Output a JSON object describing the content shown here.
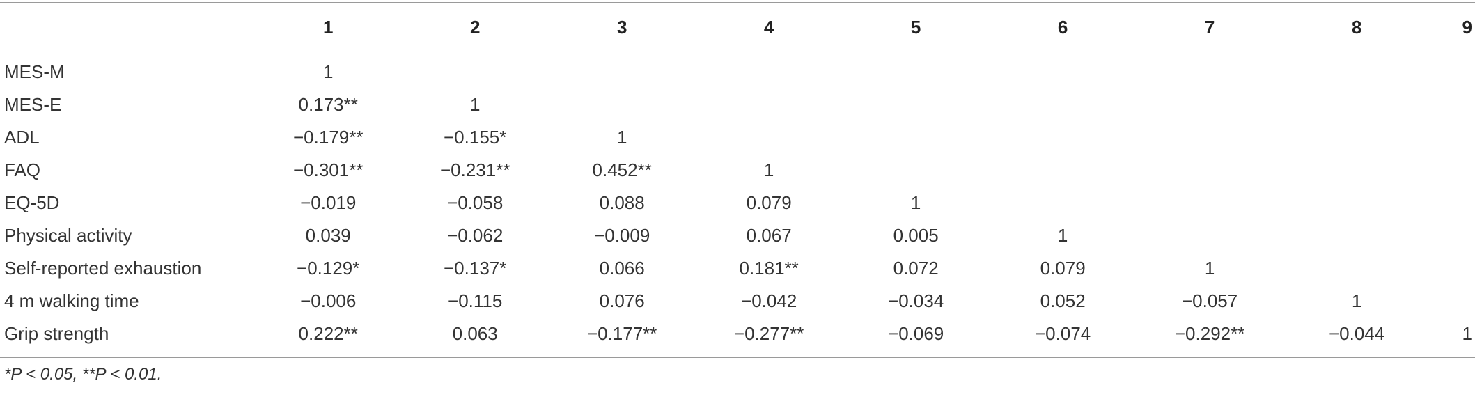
{
  "table": {
    "columns": [
      "",
      "1",
      "2",
      "3",
      "4",
      "5",
      "6",
      "7",
      "8",
      "9"
    ],
    "rows": [
      {
        "label": "MES-M",
        "values": [
          "1",
          "",
          "",
          "",
          "",
          "",
          "",
          "",
          ""
        ]
      },
      {
        "label": "MES-E",
        "values": [
          "0.173**",
          "1",
          "",
          "",
          "",
          "",
          "",
          "",
          ""
        ]
      },
      {
        "label": "ADL",
        "values": [
          "−0.179**",
          "−0.155*",
          "1",
          "",
          "",
          "",
          "",
          "",
          ""
        ]
      },
      {
        "label": "FAQ",
        "values": [
          "−0.301**",
          "−0.231**",
          "0.452**",
          "1",
          "",
          "",
          "",
          "",
          ""
        ]
      },
      {
        "label": "EQ-5D",
        "values": [
          "−0.019",
          "−0.058",
          "0.088",
          "0.079",
          "1",
          "",
          "",
          "",
          ""
        ]
      },
      {
        "label": "Physical activity",
        "values": [
          "0.039",
          "−0.062",
          "−0.009",
          "0.067",
          "0.005",
          "1",
          "",
          "",
          ""
        ]
      },
      {
        "label": "Self-reported exhaustion",
        "values": [
          "−0.129*",
          "−0.137*",
          "0.066",
          "0.181**",
          "0.072",
          "0.079",
          "1",
          "",
          ""
        ]
      },
      {
        "label": "4 m walking time",
        "values": [
          "−0.006",
          "−0.115",
          "0.076",
          "−0.042",
          "−0.034",
          "0.052",
          "−0.057",
          "1",
          ""
        ]
      },
      {
        "label": "Grip strength",
        "values": [
          "0.222**",
          "0.063",
          "−0.177**",
          "−0.277**",
          "−0.069",
          "−0.074",
          "−0.292**",
          "−0.044",
          "1"
        ]
      }
    ]
  },
  "footnote": "*P < 0.05, **P < 0.01."
}
